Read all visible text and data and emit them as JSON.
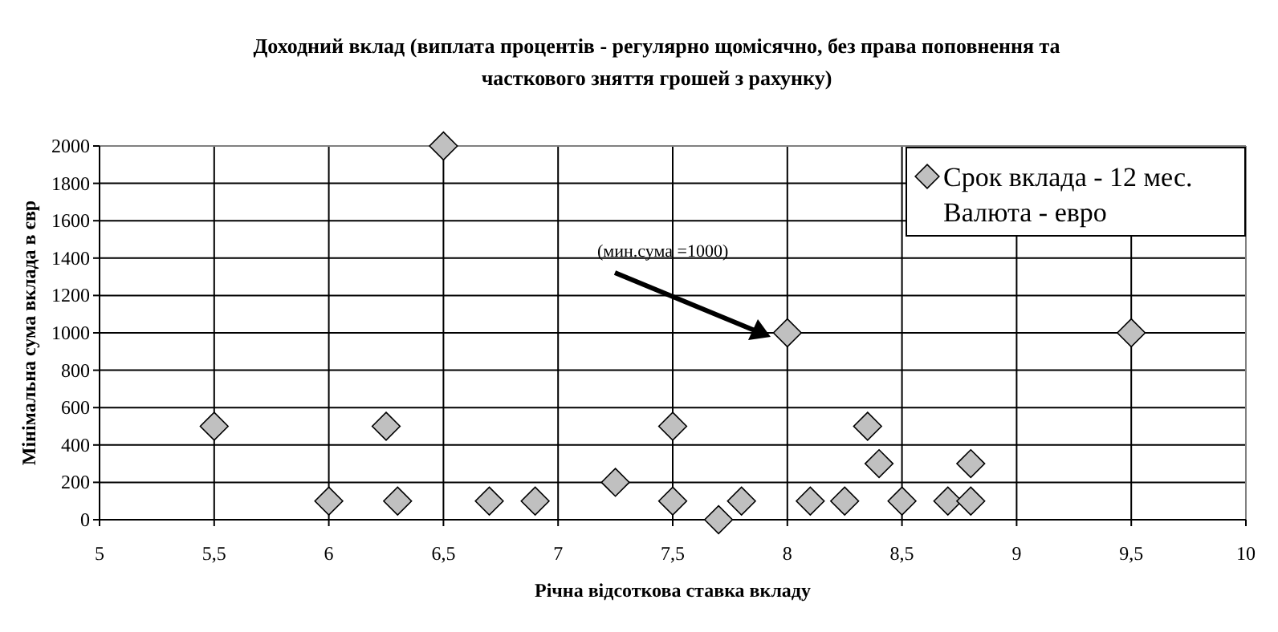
{
  "chart_data": {
    "type": "scatter",
    "title": "Доходний вклад (виплата процентів - регулярно щомісячно, без права поповнення та\nчасткового зняття грошей з рахунку)",
    "xlabel": "Річна відсоткова ставка вкладу",
    "ylabel": "Мінімальна сума вклада в євр",
    "series": [
      {
        "name": "Срок вклада - 12 мес.\nВалюта - евро",
        "color": "#c0c0c0",
        "x": [
          5.5,
          6,
          6.25,
          6.3,
          6.5,
          6.7,
          6.9,
          7.25,
          7.5,
          7.5,
          7.7,
          7.8,
          8,
          8.1,
          8.25,
          8.35,
          8.4,
          8.5,
          8.7,
          8.8,
          8.8,
          9.5
        ],
        "values": [
          500,
          100,
          500,
          100,
          2000,
          100,
          100,
          200,
          500,
          100,
          0,
          100,
          1000,
          100,
          100,
          500,
          300,
          100,
          100,
          300,
          100,
          1000
        ]
      }
    ],
    "xlim": [
      5,
      10
    ],
    "xticks": [
      5,
      {
        "value": 5.5,
        "label": "5,5"
      },
      6,
      {
        "value": 6.5,
        "label": "6,5"
      },
      7,
      {
        "value": 7.5,
        "label": "7,5"
      },
      8,
      {
        "value": 8.5,
        "label": "8,5"
      },
      9,
      {
        "value": 9.5,
        "label": "9,5"
      },
      10
    ],
    "ylim": [
      0,
      2000
    ],
    "yticks": [
      0,
      200,
      400,
      600,
      800,
      1000,
      1200,
      1400,
      1600,
      1800,
      2000
    ],
    "grid": true,
    "legend": "top right",
    "marker": "diamond",
    "annotations": [
      "(мин.сума =1000)"
    ]
  }
}
